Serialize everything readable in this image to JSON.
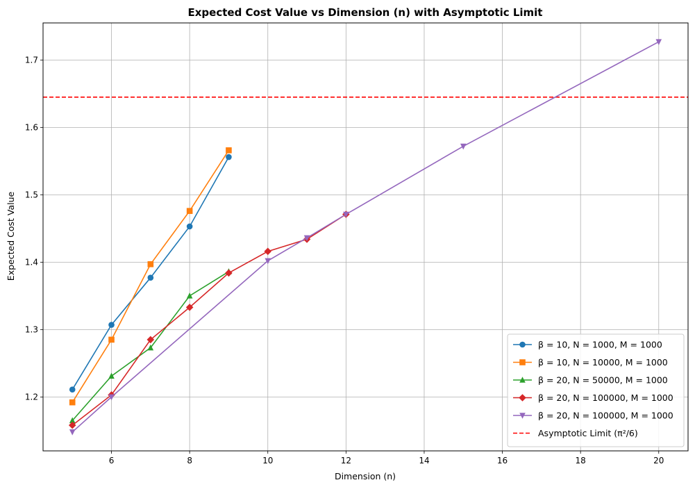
{
  "chart_data": {
    "type": "line",
    "title": "Expected Cost Value vs Dimension (n) with Asymptotic Limit",
    "xlabel": "Dimension (n)",
    "ylabel": "Expected Cost Value",
    "xlim": [
      4.25,
      20.75
    ],
    "ylim": [
      1.12,
      1.755
    ],
    "xticks": [
      6,
      8,
      10,
      12,
      14,
      16,
      18,
      20
    ],
    "yticks": [
      1.2,
      1.3,
      1.4,
      1.5,
      1.6,
      1.7
    ],
    "grid": true,
    "legend_position": "lower-right",
    "series": [
      {
        "name": "β = 10, N = 1000, M = 1000",
        "color": "#1f77b4",
        "marker": "circle",
        "x": [
          5,
          6,
          7,
          8,
          9
        ],
        "y": [
          1.211,
          1.307,
          1.377,
          1.453,
          1.556
        ]
      },
      {
        "name": "β = 10, N = 10000, M = 1000",
        "color": "#ff7f0e",
        "marker": "square",
        "x": [
          5,
          6,
          7,
          8,
          9
        ],
        "y": [
          1.192,
          1.285,
          1.397,
          1.476,
          1.566
        ]
      },
      {
        "name": "β = 20, N = 50000, M = 1000",
        "color": "#2ca02c",
        "marker": "triangle-up",
        "x": [
          5,
          6,
          7,
          8,
          9
        ],
        "y": [
          1.165,
          1.231,
          1.273,
          1.35,
          1.386
        ]
      },
      {
        "name": "β = 20, N = 100000, M = 1000",
        "color": "#d62728",
        "marker": "diamond",
        "x": [
          5,
          6,
          7,
          8,
          9,
          10,
          11,
          12
        ],
        "y": [
          1.158,
          1.203,
          1.285,
          1.333,
          1.384,
          1.416,
          1.434,
          1.471
        ]
      },
      {
        "name": "β = 20, N = 100000, M = 1000",
        "color": "#9467bd",
        "marker": "triangle-down",
        "x": [
          5,
          6,
          10,
          11,
          12,
          15,
          20
        ],
        "y": [
          1.148,
          1.2,
          1.402,
          1.436,
          1.471,
          1.572,
          1.727
        ]
      }
    ],
    "reference_lines": [
      {
        "name": "Asymptotic Limit (π²/6)",
        "color": "#ff0000",
        "style": "dashed",
        "y": 1.6449
      }
    ]
  }
}
